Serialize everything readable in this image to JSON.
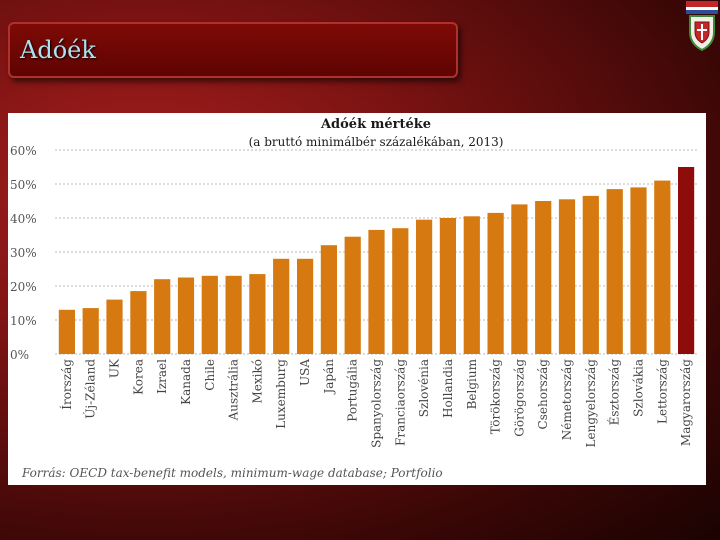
{
  "header": {
    "title": "Adóék"
  },
  "crest": {
    "icon": "coat-of-arms-icon",
    "stripe_colors": [
      "#c0262a",
      "#ffffff",
      "#2a4e9a",
      "#3f8a3a"
    ]
  },
  "chart_data": {
    "type": "bar",
    "title": "Adóék mértéke",
    "subtitle": "(a bruttó minimálbér százalékában, 2013)",
    "categories": [
      "Írország",
      "Új-Zéland",
      "UK",
      "Korea",
      "Izrael",
      "Kanada",
      "Chile",
      "Ausztrália",
      "Mexikó",
      "Luxemburg",
      "USA",
      "Japán",
      "Portugália",
      "Spanyolország",
      "Franciaország",
      "Szlovénia",
      "Hollandia",
      "Belgium",
      "Törökország",
      "Görögország",
      "Csehország",
      "Németország",
      "Lengyelország",
      "Észtország",
      "Szlovákia",
      "Lettország",
      "Magyarország"
    ],
    "values": [
      13,
      13.5,
      16,
      18.5,
      22,
      22.5,
      23,
      23,
      23.5,
      28,
      28,
      32,
      34.5,
      36.5,
      37,
      39.5,
      40,
      40.5,
      41.5,
      44,
      45,
      45.5,
      46.5,
      48.5,
      49,
      51,
      55
    ],
    "highlight": "Magyarország",
    "y_ticks": [
      "0%",
      "10%",
      "20%",
      "30%",
      "40%",
      "50%",
      "60%"
    ],
    "ylim": [
      0,
      60
    ],
    "grid": true,
    "bar_color": "#d57910",
    "highlight_color": "#8e0d0b",
    "source": "Forrás: OECD tax-benefit models, minimum-wage database; Portfolio"
  }
}
